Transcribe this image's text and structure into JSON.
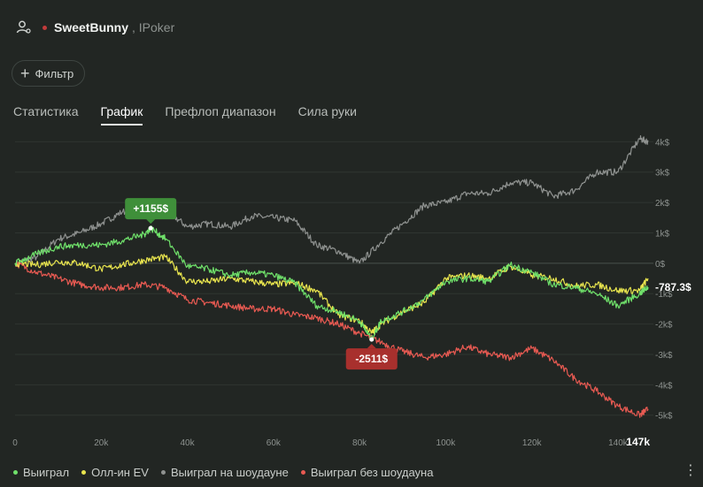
{
  "header": {
    "user_icon": "user-gear-icon",
    "player_name": "SweetBunny",
    "site": ", IPoker",
    "status_color": "#c23b3b"
  },
  "filter": {
    "label": "Фильтр",
    "icon": "plus-icon"
  },
  "tabs": [
    {
      "label": "Статистика",
      "active": false
    },
    {
      "label": "График",
      "active": true
    },
    {
      "label": "Префлоп диапазон",
      "active": false
    },
    {
      "label": "Сила руки",
      "active": false
    }
  ],
  "chart_data": {
    "type": "line",
    "xlabel": "",
    "ylabel": "",
    "xlim": [
      0,
      147000
    ],
    "ylim": [
      -5300,
      4300
    ],
    "x_ticks": [
      "0",
      "20k",
      "40k",
      "60k",
      "80k",
      "100k",
      "120k",
      "140k"
    ],
    "x_tick_values": [
      0,
      20000,
      40000,
      60000,
      80000,
      100000,
      120000,
      140000
    ],
    "x_end_label": "147k",
    "y_ticks": [
      "4k$",
      "3k$",
      "2k$",
      "1k$",
      "0$",
      "-1k$",
      "-2k$",
      "-3k$",
      "-4k$",
      "-5k$"
    ],
    "y_tick_values": [
      4000,
      3000,
      2000,
      1000,
      0,
      -1000,
      -2000,
      -3000,
      -4000,
      -5000
    ],
    "grid": true,
    "legend_position": "bottom",
    "annotations": [
      {
        "label": "+1155$",
        "x": 31500,
        "y": 1155,
        "color": "#3f8f3a"
      },
      {
        "label": "-2511$",
        "x": 82800,
        "y": -2511,
        "color": "#a8302d"
      }
    ],
    "end_value_label": "-787.3$",
    "series": [
      {
        "name": "Выиграл на шоудауне",
        "color": "#8f9290",
        "x": [
          0,
          5000,
          10000,
          15000,
          20000,
          25000,
          30000,
          35000,
          40000,
          45000,
          50000,
          55000,
          60000,
          65000,
          70000,
          75000,
          80000,
          85000,
          90000,
          95000,
          100000,
          105000,
          110000,
          115000,
          120000,
          125000,
          130000,
          135000,
          140000,
          145000,
          147000
        ],
        "y": [
          0,
          200,
          800,
          1000,
          1300,
          1700,
          1600,
          1750,
          1200,
          1300,
          1200,
          1550,
          1500,
          1400,
          600,
          400,
          0,
          700,
          1300,
          1900,
          2000,
          2300,
          2300,
          2650,
          2650,
          2200,
          2400,
          3000,
          3000,
          4100,
          4000
        ]
      },
      {
        "name": "Выиграл",
        "color": "#6fe06a",
        "x": [
          0,
          5000,
          10000,
          15000,
          20000,
          25000,
          30000,
          31500,
          35000,
          40000,
          45000,
          50000,
          55000,
          60000,
          65000,
          70000,
          75000,
          80000,
          82800,
          85000,
          90000,
          95000,
          100000,
          105000,
          110000,
          115000,
          120000,
          125000,
          130000,
          135000,
          140000,
          145000,
          147000
        ],
        "y": [
          0,
          300,
          550,
          600,
          600,
          750,
          950,
          1155,
          800,
          -100,
          -200,
          -400,
          -300,
          -400,
          -650,
          -1400,
          -1600,
          -1900,
          -2511,
          -1900,
          -1600,
          -1200,
          -600,
          -500,
          -600,
          -50,
          -300,
          -700,
          -800,
          -1000,
          -1400,
          -1000,
          -787
        ]
      },
      {
        "name": "Олл-ин EV",
        "color": "#e9e54e",
        "x": [
          0,
          5000,
          10000,
          15000,
          20000,
          25000,
          30000,
          35000,
          40000,
          45000,
          50000,
          55000,
          60000,
          65000,
          70000,
          75000,
          80000,
          82800,
          85000,
          90000,
          95000,
          100000,
          105000,
          110000,
          115000,
          120000,
          125000,
          130000,
          135000,
          140000,
          145000,
          147000
        ],
        "y": [
          0,
          -50,
          50,
          0,
          -200,
          -50,
          100,
          200,
          -600,
          -600,
          -500,
          -600,
          -700,
          -650,
          -900,
          -1700,
          -1900,
          -2300,
          -2000,
          -1600,
          -1300,
          -500,
          -400,
          -500,
          -100,
          -400,
          -500,
          -750,
          -700,
          -900,
          -900,
          -500
        ]
      },
      {
        "name": "Выиграл без шоудауна",
        "color": "#e85a52",
        "x": [
          0,
          5000,
          10000,
          15000,
          20000,
          25000,
          30000,
          35000,
          40000,
          45000,
          50000,
          55000,
          60000,
          65000,
          70000,
          75000,
          80000,
          85000,
          90000,
          95000,
          100000,
          105000,
          110000,
          115000,
          120000,
          125000,
          130000,
          135000,
          140000,
          145000,
          147000
        ],
        "y": [
          0,
          -300,
          -500,
          -700,
          -800,
          -800,
          -700,
          -800,
          -1200,
          -1300,
          -1400,
          -1500,
          -1500,
          -1700,
          -1800,
          -2000,
          -2300,
          -2600,
          -2900,
          -3100,
          -3000,
          -2750,
          -3000,
          -3100,
          -2800,
          -3200,
          -3800,
          -4200,
          -4700,
          -5000,
          -4800
        ]
      }
    ]
  },
  "legend": [
    {
      "label": "Выиграл",
      "color": "#6fe06a"
    },
    {
      "label": "Олл-ин EV",
      "color": "#e9e54e"
    },
    {
      "label": "Выиграл на шоудауне",
      "color": "#8f9290"
    },
    {
      "label": "Выиграл без шоудауна",
      "color": "#e85a52"
    }
  ],
  "menu": {
    "icon": "more-vertical-icon",
    "glyph": "⋮"
  }
}
